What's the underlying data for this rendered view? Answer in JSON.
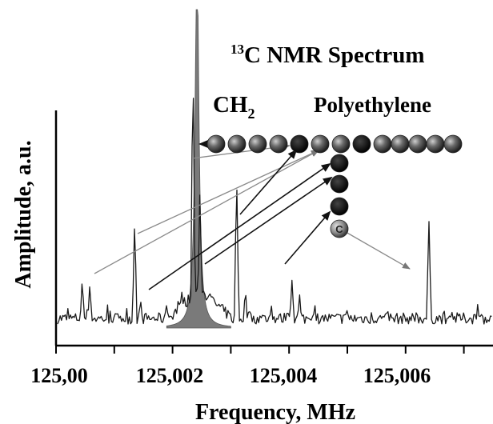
{
  "chart_data": {
    "type": "line",
    "title_sup": "13",
    "title": "C  NMR Spectrum",
    "molecule_label": "Polyethylene",
    "peak_label": "CH",
    "peak_label_sub": "2",
    "xlabel": "Frequency, MHz",
    "ylabel": "Amplitude, a.u.",
    "x_tick_labels": [
      "125,00",
      "125,002",
      "125,004",
      "125,006"
    ],
    "xlim": [
      125.0,
      125.0075
    ],
    "ylim": [
      0,
      1
    ],
    "carbon_symbol": "C",
    "series": [
      {
        "values": [
          [
            125.0,
            0.05
          ],
          [
            125.00045,
            0.2
          ],
          [
            125.00058,
            0.18
          ],
          [
            125.00135,
            0.44
          ],
          [
            125.00145,
            0.12
          ],
          [
            125.0019,
            0.1
          ],
          [
            125.00235,
            1.1
          ],
          [
            125.00247,
            0.58
          ],
          [
            125.0031,
            0.62
          ],
          [
            125.00325,
            0.16
          ],
          [
            125.00405,
            0.2
          ],
          [
            125.00418,
            0.14
          ],
          [
            125.005,
            0.08
          ],
          [
            125.0064,
            0.45
          ],
          [
            125.0075,
            0.05
          ]
        ]
      },
      {
        "values": [
          [
            125.0019,
            0.0
          ],
          [
            125.00225,
            0.15
          ],
          [
            125.00242,
            1.6
          ],
          [
            125.0026,
            0.15
          ],
          [
            125.003,
            0.0
          ]
        ]
      }
    ]
  },
  "colors": {
    "trace": "#1a1a1a",
    "filled_peak": "#7a7a7a",
    "arrows": "#8a8a8a",
    "atom": "#555555",
    "atom_dark": "#111111"
  }
}
